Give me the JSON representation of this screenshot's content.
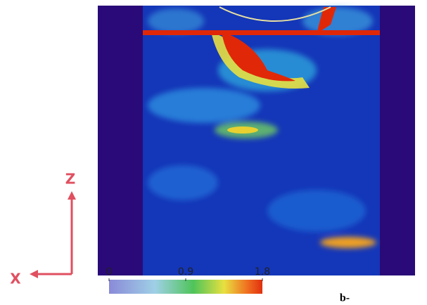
{
  "axes": {
    "vertical": "Z",
    "horizontal": "X"
  },
  "colorbar": {
    "range": [
      0,
      1.8
    ],
    "ticks": [
      0,
      0.9,
      1.8
    ]
  },
  "caption": "b-"
}
